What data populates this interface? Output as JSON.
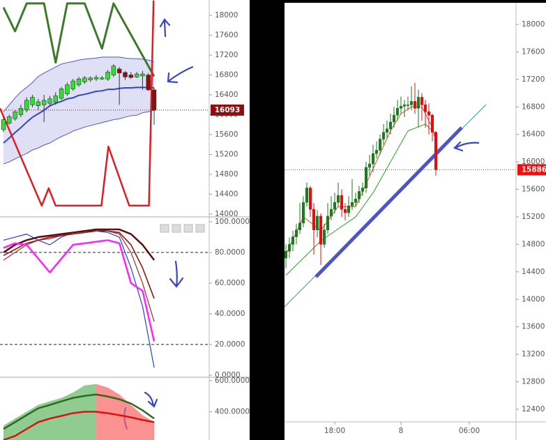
{
  "chart_data": [
    {
      "type": "candlestick",
      "open": [
        15700,
        15830,
        15920,
        16000,
        16100,
        16200,
        16180,
        16200,
        16230,
        16250,
        16330,
        16420,
        16520,
        16600,
        16660,
        16700,
        16720,
        16720,
        16720,
        16800,
        16920,
        16850,
        16800,
        16760,
        16780,
        16800,
        16500
      ],
      "high": [
        15950,
        16000,
        16100,
        16200,
        16350,
        16400,
        16320,
        16400,
        16380,
        16450,
        16560,
        16650,
        16720,
        16760,
        16780,
        16770,
        16800,
        16780,
        16900,
        17020,
        16960,
        16880,
        16860,
        16860,
        16880,
        16840,
        16540
      ],
      "low": [
        15650,
        15800,
        15880,
        15950,
        16050,
        16150,
        16100,
        15850,
        16180,
        16200,
        16300,
        16380,
        16480,
        16560,
        16620,
        16660,
        16680,
        16700,
        16680,
        16760,
        16200,
        16700,
        16720,
        16740,
        16500,
        16480,
        15800
      ],
      "close": [
        15900,
        15960,
        16060,
        16130,
        16290,
        16350,
        16260,
        16290,
        16320,
        16380,
        16520,
        16600,
        16680,
        16720,
        16740,
        16740,
        16750,
        16740,
        16860,
        16980,
        16840,
        16760,
        16750,
        16820,
        16820,
        16500,
        16093
      ],
      "up_color": "#33dd33",
      "down_color": "#8b1010",
      "series": [
        {
          "color": "#5555c8",
          "width": 1,
          "values": [
            16060,
            16200,
            16340,
            16460,
            16550,
            16650,
            16770,
            16840,
            16900,
            16960,
            17020,
            17050,
            17070,
            17100,
            17120,
            17130,
            17140,
            17160,
            17160,
            17160,
            17160,
            17140,
            17130,
            17130,
            17120,
            17100,
            17070
          ]
        },
        {
          "color": "#5555c8",
          "width": 1,
          "values": [
            15010,
            15050,
            15110,
            15170,
            15220,
            15290,
            15330,
            15390,
            15430,
            15500,
            15560,
            15610,
            15670,
            15710,
            15750,
            15780,
            15810,
            15840,
            15870,
            15900,
            15920,
            15950,
            15980,
            15990,
            16040,
            16060,
            16090
          ]
        },
        {
          "color": "#3344cc",
          "width": 2,
          "values": [
            15430,
            15530,
            15640,
            15740,
            15850,
            15950,
            16020,
            16090,
            16180,
            16230,
            16270,
            16320,
            16340,
            16390,
            16410,
            16440,
            16470,
            16480,
            16510,
            16510,
            16530,
            16540,
            16540,
            16550,
            16550,
            16550,
            16540
          ]
        },
        {
          "color": "#3c7a28",
          "width": 3,
          "x": [
            0,
            2,
            4,
            7,
            9,
            11,
            14,
            17,
            19,
            26
          ],
          "values": [
            18160,
            17680,
            18240,
            18240,
            17050,
            18240,
            18240,
            17330,
            18240,
            16770
          ]
        },
        {
          "color": "#e01b24",
          "width": 2.5,
          "x": [
            -0.6,
            6.6,
            7.8,
            9,
            16.9,
            18.1,
            21.7,
            25.1,
            25.9
          ],
          "values": [
            16130,
            14170,
            14520,
            14170,
            14170,
            15360,
            14170,
            14170,
            18300
          ]
        }
      ],
      "band": [
        0,
        1
      ],
      "band_color": "rgba(110,110,210,0.22)",
      "xlim": [
        -0.6,
        35.5
      ],
      "ylim": [
        13958,
        18309
      ],
      "yticks": [
        14000,
        14400,
        14800,
        15200,
        15600,
        16000,
        16400,
        16800,
        17200,
        17600,
        18000
      ],
      "last_price": 16093,
      "last_price_color": "#8b1010"
    },
    {
      "type": "line",
      "x": [
        0,
        2,
        4,
        6,
        8,
        10,
        12,
        14,
        16,
        18,
        20,
        22,
        24,
        26
      ],
      "series": [
        {
          "color": "#2244cc",
          "width": 1.2,
          "values": [
            88,
            90,
            92,
            88,
            85,
            90,
            93,
            94,
            94,
            93,
            90,
            70,
            45,
            5
          ]
        },
        {
          "color": "#a52a2a",
          "width": 1.2,
          "values": [
            75,
            80,
            85,
            88,
            89,
            91,
            93,
            94,
            95,
            94,
            92,
            80,
            60,
            35
          ]
        },
        {
          "color": "#8b1a1a",
          "width": 1.6,
          "values": [
            78,
            82,
            86,
            88,
            90,
            91,
            92,
            93,
            94,
            94,
            93,
            85,
            70,
            50
          ]
        },
        {
          "color": "#5e0d0d",
          "width": 2.5,
          "values": [
            80,
            85,
            88,
            90,
            91,
            92,
            93,
            94,
            95,
            95,
            95,
            92,
            85,
            75
          ]
        },
        {
          "color": "#ff22ff",
          "width": 2.5,
          "values": [
            83,
            86,
            85,
            76,
            67,
            76,
            85,
            86,
            87,
            88,
            86,
            60,
            55,
            22
          ]
        }
      ],
      "reference_lines": [
        80,
        20
      ],
      "xlim": [
        -0.6,
        35.5
      ],
      "ylim": [
        -0.9,
        103.2
      ],
      "yticks": [
        {
          "value": 0,
          "label": "0.0000"
        },
        {
          "value": 20,
          "label": "20.0000"
        },
        {
          "value": 40,
          "label": "40.0000"
        },
        {
          "value": 60,
          "label": "60.0000"
        },
        {
          "value": 80,
          "label": "80.0000"
        },
        {
          "value": 100,
          "label": "100.0000"
        }
      ]
    },
    {
      "type": "area",
      "x": [
        0,
        2,
        4,
        6,
        8,
        10,
        12,
        14,
        16,
        18,
        20,
        22,
        24,
        26
      ],
      "series": [
        {
          "kind": "area",
          "color": "rgba(70,170,70,0.6)",
          "values": [
            311,
            356,
            400,
            444,
            467,
            489,
            524,
            569,
            578,
            null,
            null,
            null,
            null,
            null
          ]
        },
        {
          "kind": "area",
          "color": "rgba(250,100,100,0.7)",
          "values": [
            null,
            null,
            null,
            null,
            null,
            null,
            null,
            null,
            578,
            556,
            511,
            444,
            378,
            333
          ]
        },
        {
          "kind": "line",
          "color": "#2b6b1f",
          "width": 2.5,
          "values": [
            289,
            333,
            378,
            422,
            444,
            467,
            489,
            502,
            511,
            498,
            480,
            453,
            409,
            356
          ]
        },
        {
          "kind": "line",
          "color": "#dd1111",
          "width": 2.5,
          "values": [
            218,
            244,
            289,
            333,
            356,
            373,
            391,
            400,
            400,
            391,
            378,
            364,
            347,
            333
          ]
        }
      ],
      "xlim": [
        -0.6,
        35.5
      ],
      "ylim": [
        218,
        622
      ],
      "yticks": [
        {
          "value": 400,
          "label": "400.0000"
        },
        {
          "value": 600,
          "label": "600.0000"
        }
      ]
    },
    {
      "type": "candlestick",
      "open": [
        14600,
        14700,
        14800,
        14910,
        15010,
        15110,
        15410,
        15620,
        15310,
        15010,
        15210,
        14800,
        15010,
        15210,
        15310,
        15410,
        15510,
        15310,
        15260,
        15360,
        15410,
        15460,
        15570,
        15620,
        15920,
        15970,
        16120,
        16170,
        16330,
        16430,
        16480,
        16580,
        16680,
        16780,
        16810,
        16830,
        16830,
        16880,
        16780,
        16940,
        16830,
        16730,
        16680,
        16430
      ],
      "high": [
        14800,
        14900,
        15000,
        15100,
        15400,
        15500,
        15700,
        15650,
        15400,
        15300,
        15250,
        15100,
        15400,
        15500,
        15550,
        15700,
        15600,
        15400,
        15500,
        15750,
        15550,
        15650,
        15700,
        16000,
        16100,
        16250,
        16300,
        16400,
        16550,
        16600,
        16700,
        16800,
        16900,
        16950,
        16900,
        16950,
        17100,
        17150,
        17050,
        17000,
        16900,
        16850,
        16700,
        16450
      ],
      "low": [
        14450,
        14600,
        14700,
        14800,
        14950,
        15050,
        15350,
        15200,
        14650,
        14900,
        14500,
        14750,
        14950,
        15150,
        15250,
        15350,
        15200,
        15150,
        15200,
        15300,
        15350,
        15400,
        15500,
        15550,
        15800,
        15850,
        16050,
        16100,
        16250,
        16350,
        16400,
        16500,
        16600,
        16700,
        16650,
        16750,
        16750,
        16700,
        16500,
        16600,
        16500,
        16400,
        16300,
        15800
      ],
      "close": [
        14700,
        14800,
        14910,
        15010,
        15110,
        15410,
        15620,
        15310,
        15010,
        15210,
        14800,
        15010,
        15210,
        15310,
        15410,
        15510,
        15310,
        15260,
        15360,
        15410,
        15460,
        15570,
        15620,
        15920,
        15970,
        16120,
        16170,
        16330,
        16430,
        16480,
        16580,
        16680,
        16780,
        16810,
        16830,
        16830,
        16880,
        16780,
        16940,
        16830,
        16730,
        16680,
        16430,
        15886
      ],
      "up_color": "#1f7a1f",
      "down_color": "#dd1111",
      "series": [
        {
          "color": "#2aa198",
          "width": 1,
          "x": [
            -0.4,
            57.4
          ],
          "values": [
            13891,
            16833
          ]
        },
        {
          "color": "#2e9e2e",
          "width": 1,
          "x": [
            0,
            10,
            20,
            25,
            30,
            35,
            40,
            43
          ],
          "values": [
            14350,
            14850,
            15200,
            15550,
            16000,
            16450,
            16550,
            16400
          ]
        },
        {
          "color": "#d94a3a",
          "width": 1,
          "x": [
            0,
            5,
            10,
            15,
            20,
            25,
            30,
            33,
            36,
            39,
            42,
            43
          ],
          "values": [
            14650,
            15200,
            15000,
            15350,
            15350,
            15900,
            16450,
            16700,
            16800,
            16800,
            16500,
            16300
          ]
        },
        {
          "color": "#4a55c8",
          "width": 5,
          "x": [
            8.6,
            50.4
          ],
          "values": [
            14327,
            16498
          ]
        }
      ],
      "xlim": [
        -0.4,
        66
      ],
      "ylim": [
        12217,
        18355
      ],
      "xticks": [
        {
          "value": 14,
          "label": "18:00"
        },
        {
          "value": 33,
          "label": "8"
        },
        {
          "value": 52.6,
          "label": "06:00"
        }
      ],
      "yticks": [
        12400,
        12800,
        13200,
        13600,
        14000,
        14400,
        14800,
        15200,
        15600,
        16000,
        16400,
        16800,
        17200,
        17600,
        18000
      ],
      "last_price": 15886,
      "last_price_color": "#ee1111"
    }
  ]
}
